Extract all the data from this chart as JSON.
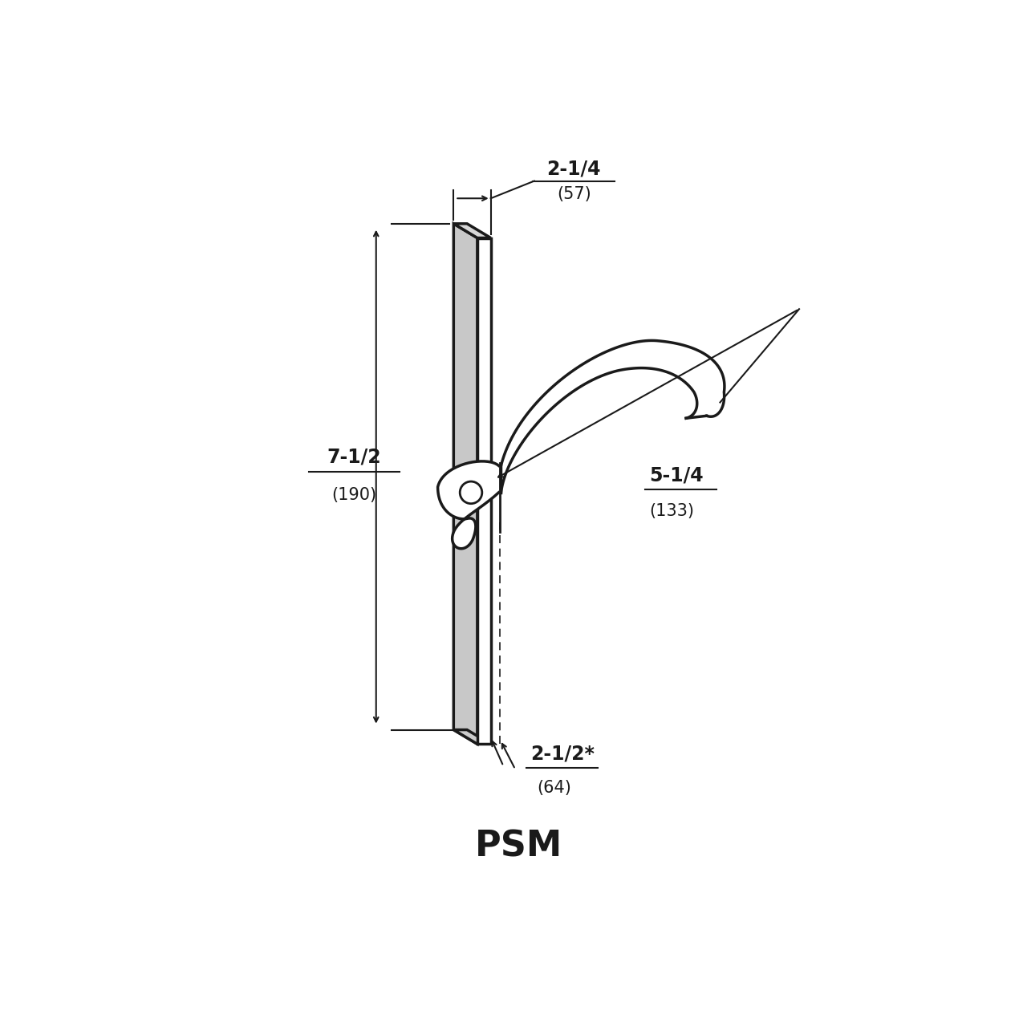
{
  "title": "PSM",
  "title_fontsize": 32,
  "title_fontweight": "bold",
  "bg_color": "#ffffff",
  "line_color": "#1a1a1a",
  "dim_text_color": "#1a1a1a",
  "lw_main": 2.5,
  "lw_dim": 1.5,
  "lw_thin": 1.2
}
